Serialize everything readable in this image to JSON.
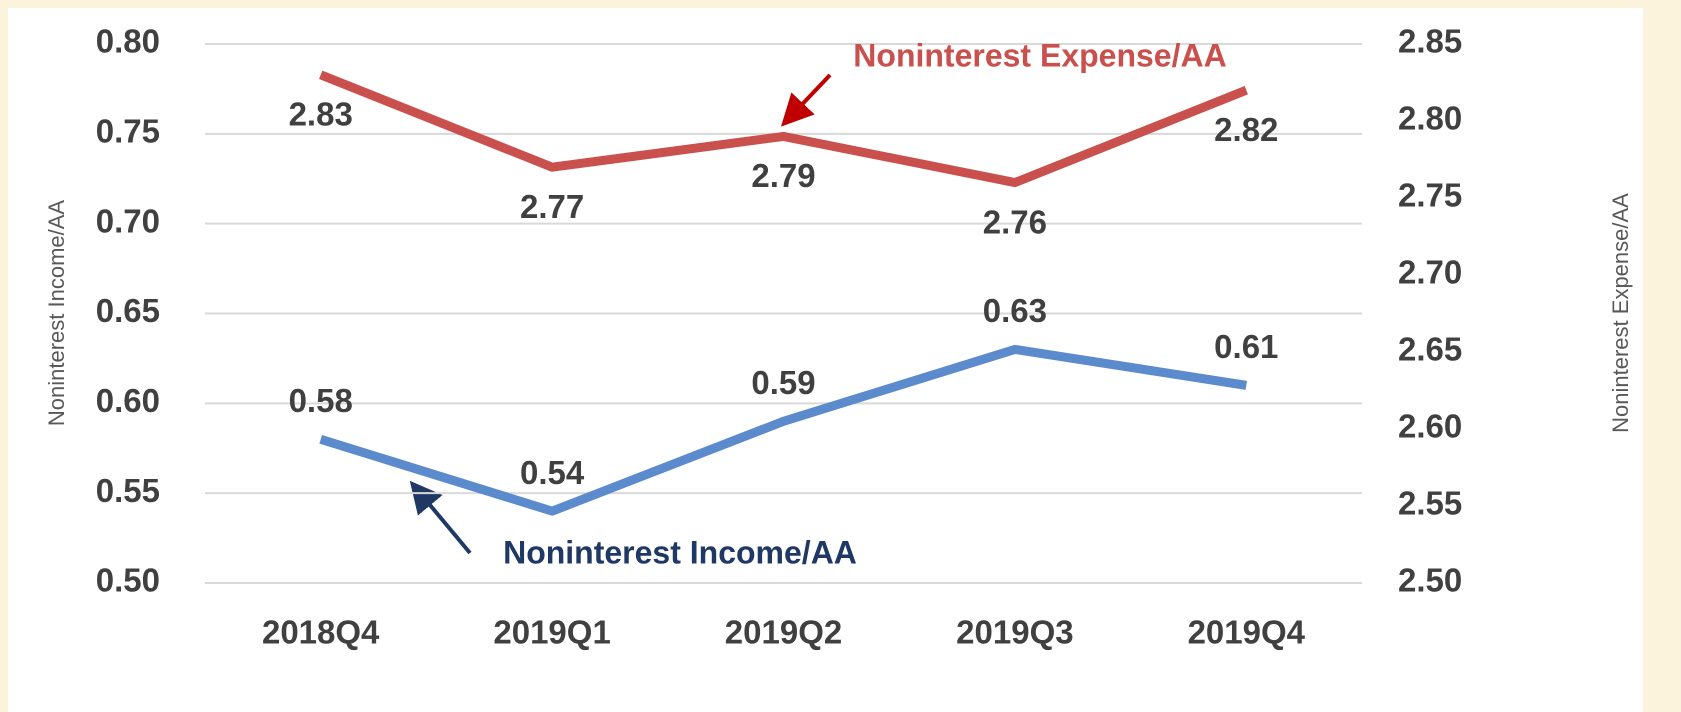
{
  "chart_data": {
    "type": "line",
    "categories": [
      "2018Q4",
      "2019Q1",
      "2019Q2",
      "2019Q3",
      "2019Q4"
    ],
    "series": [
      {
        "name": "Noninterest Income/AA",
        "color": "#5b8bcd",
        "values": [
          0.58,
          0.54,
          0.59,
          0.63,
          0.61
        ]
      },
      {
        "name": "Noninterest Expense/AA",
        "color": "#c9504d",
        "values": [
          2.83,
          2.77,
          2.79,
          2.76,
          2.82
        ],
        "axis": "y2"
      }
    ],
    "ylabel": "Noninterest Income/AA",
    "y2label": "Noninterest Expense/AA",
    "ylim": [
      0.5,
      0.8
    ],
    "yticks": [
      {
        "value": 0.5,
        "label": "0.50"
      },
      0.55,
      {
        "value": 0.6,
        "label": "0.60"
      },
      0.65,
      {
        "value": 0.7,
        "label": "0.70"
      },
      0.75,
      {
        "value": 0.8,
        "label": "0.80"
      }
    ],
    "y2lim": [
      2.5,
      2.85
    ],
    "y2ticks": [
      {
        "value": 2.5,
        "label": "2.50"
      },
      2.55,
      {
        "value": 2.6,
        "label": "2.60"
      },
      2.65,
      {
        "value": 2.7,
        "label": "2.70"
      },
      2.75,
      {
        "value": 2.8,
        "label": "2.80"
      },
      2.85
    ],
    "annotations": [
      {
        "text": "Noninterest Income/AA",
        "color": "#1f3864"
      },
      {
        "text": "Noninterest Expense/AA",
        "color": "#c9504d"
      }
    ],
    "grid": true
  }
}
